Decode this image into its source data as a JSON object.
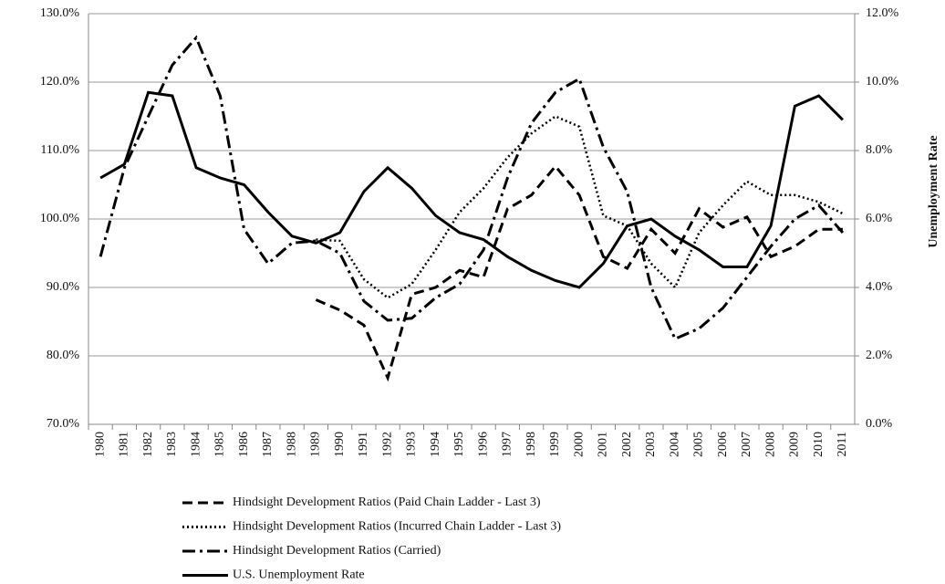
{
  "chart_data": {
    "type": "line",
    "y_label": "Unemployment Rate",
    "categories": [
      "1980",
      "1981",
      "1982",
      "1983",
      "1984",
      "1985",
      "1986",
      "1987",
      "1988",
      "1989",
      "1990",
      "1991",
      "1992",
      "1993",
      "1994",
      "1995",
      "1996",
      "1997",
      "1998",
      "1999",
      "2000",
      "2001",
      "2002",
      "2003",
      "2004",
      "2005",
      "2006",
      "2007",
      "2008",
      "2009",
      "2010",
      "2011"
    ],
    "ylim": [
      70,
      130
    ],
    "yticks": [
      {
        "value": 70,
        "label": "70.0%"
      },
      {
        "value": 80,
        "label": "80.0%"
      },
      {
        "value": 90,
        "label": "90.0%"
      },
      {
        "value": 100,
        "label": "100.0%"
      },
      {
        "value": 110,
        "label": "110.0%"
      },
      {
        "value": 120,
        "label": "120.0%"
      },
      {
        "value": 130,
        "label": "130.0%"
      }
    ],
    "y2lim": [
      0,
      12
    ],
    "y2ticks": [
      {
        "value": 0,
        "label": "0.0%"
      },
      {
        "value": 2,
        "label": "2.0%"
      },
      {
        "value": 4,
        "label": "4.0%"
      },
      {
        "value": 6,
        "label": "6.0%"
      },
      {
        "value": 8,
        "label": "8.0%"
      },
      {
        "value": 10,
        "label": "10.0%"
      },
      {
        "value": 12,
        "label": "12.0%"
      }
    ],
    "grid": true,
    "series": [
      {
        "name": "Hindsight Development Ratios (Paid Chain Ladder - Last 3)",
        "color": "#000000",
        "dash": "dashed",
        "values": [
          null,
          null,
          null,
          null,
          null,
          null,
          null,
          null,
          null,
          88.2,
          86.7,
          84.5,
          76.8,
          89.0,
          90.0,
          92.5,
          91.5,
          101.5,
          103.5,
          107.7,
          103.5,
          94.5,
          92.8,
          98.5,
          95.0,
          101.5,
          98.8,
          100.3,
          94.5,
          96.0,
          98.5,
          98.5
        ]
      },
      {
        "name": "Hindsight Development Ratios (Incurred Chain Ladder - Last 3)",
        "color": "#000000",
        "dash": "dotted",
        "values": [
          null,
          null,
          null,
          null,
          null,
          null,
          null,
          null,
          null,
          97.0,
          96.8,
          91.2,
          88.5,
          90.5,
          95.5,
          101.0,
          104.5,
          109.0,
          112.5,
          115.0,
          113.5,
          100.5,
          99.0,
          93.5,
          90.0,
          98.0,
          102.0,
          105.5,
          103.5,
          103.5,
          102.5,
          100.8
        ]
      },
      {
        "name": "Hindsight Development Ratios (Carried)",
        "color": "#000000",
        "dash": "dashdot",
        "values": [
          94.5,
          107.5,
          115.0,
          122.5,
          126.5,
          118.0,
          98.5,
          93.5,
          96.5,
          96.8,
          95.0,
          88.0,
          85.2,
          85.5,
          88.5,
          90.5,
          95.5,
          106.0,
          114.0,
          118.5,
          120.5,
          110.5,
          104.0,
          90.0,
          82.5,
          84.0,
          87.0,
          91.5,
          96.0,
          100.0,
          102.0,
          98.0
        ]
      },
      {
        "name": "U.S. Unemployment Rate",
        "color": "#000000",
        "dash": "solid",
        "axis": "y2",
        "values": [
          7.2,
          7.6,
          9.7,
          9.6,
          7.5,
          7.2,
          7.0,
          6.2,
          5.5,
          5.3,
          5.6,
          6.8,
          7.5,
          6.9,
          6.1,
          5.6,
          5.4,
          4.9,
          4.5,
          4.2,
          4.0,
          4.7,
          5.8,
          6.0,
          5.5,
          5.1,
          4.6,
          4.6,
          5.8,
          9.3,
          9.6,
          8.9
        ]
      }
    ]
  }
}
